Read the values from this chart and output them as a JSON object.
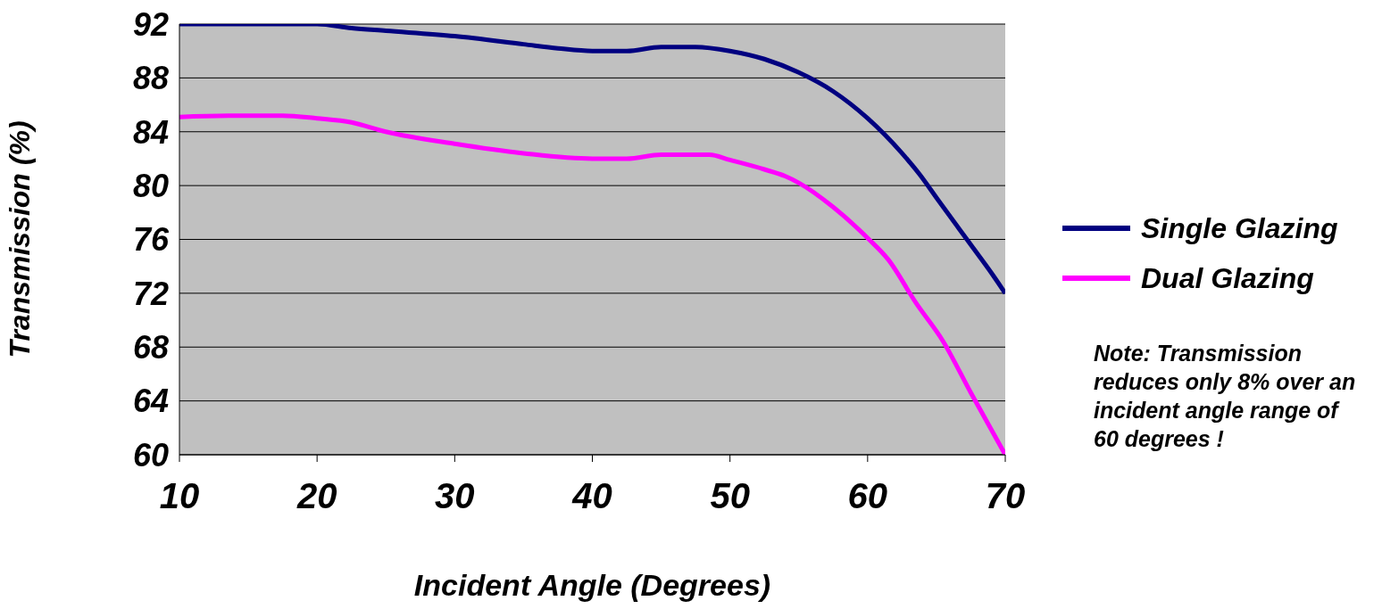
{
  "chart_data": {
    "type": "line",
    "xlabel": "Incident Angle (Degrees)",
    "ylabel": "Transmission (%)",
    "xlim": [
      10,
      70
    ],
    "xticks": [
      10,
      20,
      30,
      40,
      50,
      60,
      70
    ],
    "ylim": [
      60,
      92
    ],
    "yticks": [
      60,
      64,
      68,
      72,
      76,
      80,
      84,
      88,
      92
    ],
    "grid": "y",
    "legend": "right",
    "marker": "none",
    "line_style": "solid",
    "series": [
      {
        "name": "Single Glazing",
        "color": "#000080",
        "x": [
          10,
          15,
          20,
          22.5,
          25,
          30,
          35,
          37.5,
          40,
          42.5,
          45,
          47.5,
          50,
          52.5,
          55,
          57.5,
          60,
          62.5,
          63.8,
          65,
          67.5,
          69,
          70
        ],
        "values": [
          92,
          92,
          92,
          91.7,
          91.5,
          91.1,
          90.5,
          90.2,
          90,
          90,
          90.3,
          90.3,
          90,
          89.4,
          88.4,
          87,
          85,
          82.4,
          80.8,
          79.1,
          75.6,
          73.5,
          72
        ]
      },
      {
        "name": "Dual Glazing",
        "color": "#ff00ff",
        "x": [
          10,
          15,
          17.5,
          20,
          22.5,
          25,
          30,
          35,
          40,
          42.5,
          45,
          48.5,
          50,
          52.5,
          54,
          55,
          57.5,
          60,
          61.5,
          63.5,
          65.5,
          67.5,
          70
        ],
        "values": [
          85.1,
          85.2,
          85.2,
          85,
          84.7,
          84,
          83.1,
          82.4,
          82,
          82,
          82.3,
          82.3,
          81.9,
          81.2,
          80.7,
          80.2,
          78.4,
          76.1,
          74.5,
          71.3,
          68.4,
          64.6,
          60
        ]
      }
    ],
    "annotations": [
      "Note: Transmission reduces only 8% over an incident angle range of 60 degrees !"
    ]
  }
}
